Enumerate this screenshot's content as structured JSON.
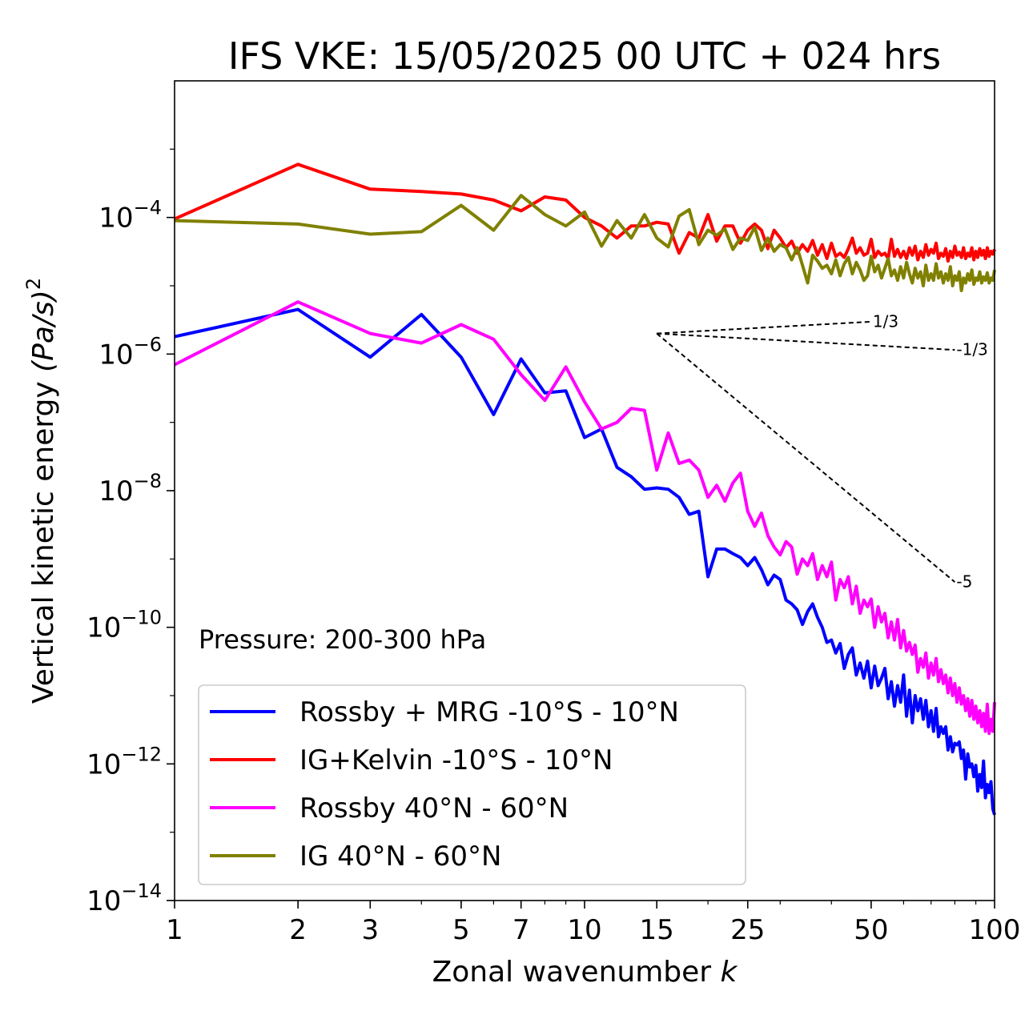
{
  "chart_data": {
    "type": "line",
    "title": "IFS VKE: 15/05/2025 00 UTC + 024 hrs",
    "xlabel": "Zonal wavenumber",
    "xlabel_var": "k",
    "ylabel": "Vertical kinetic energy",
    "ylabel_units": "(Pa/s)",
    "ylabel_exp": "2",
    "x_scale": "log",
    "y_scale": "log",
    "xlim": [
      1,
      100
    ],
    "ylim": [
      1e-14,
      0.01
    ],
    "x_ticks": [
      {
        "value": 1,
        "label": "1"
      },
      {
        "value": 2,
        "label": "2"
      },
      {
        "value": 3,
        "label": "3"
      },
      {
        "value": 5,
        "label": "5"
      },
      {
        "value": 7,
        "label": "7"
      },
      {
        "value": 10,
        "label": "10"
      },
      {
        "value": 15,
        "label": "15"
      },
      {
        "value": 25,
        "label": "25"
      },
      {
        "value": 50,
        "label": "50"
      },
      {
        "value": 100,
        "label": "100"
      }
    ],
    "y_ticks": [
      {
        "value": 0.0001,
        "base": "10",
        "exp": "−4"
      },
      {
        "value": 1e-06,
        "base": "10",
        "exp": "−6"
      },
      {
        "value": 1e-08,
        "base": "10",
        "exp": "−8"
      },
      {
        "value": 1e-10,
        "base": "10",
        "exp": "−10"
      },
      {
        "value": 1e-12,
        "base": "10",
        "exp": "−12"
      },
      {
        "value": 1e-14,
        "base": "10",
        "exp": "−14"
      }
    ],
    "annotation": "Pressure: 200-300 hPa",
    "legend_position": "lower-left",
    "grid": false,
    "reference_slopes": [
      {
        "label": "1/3",
        "x": [
          15,
          50
        ],
        "y": [
          2e-06,
          2.98e-06
        ]
      },
      {
        "label": "-1/3",
        "x": [
          15,
          80
        ],
        "y": [
          2e-06,
          1.15e-06
        ]
      },
      {
        "label": "-5",
        "x": [
          15,
          80
        ],
        "y": [
          2e-06,
          4.6e-10
        ]
      }
    ],
    "series": [
      {
        "name": "Rossby + MRG -10°S - 10°N",
        "color": "#0000ff",
        "x": [
          1,
          2,
          3,
          4,
          5,
          6,
          7,
          8,
          9,
          10,
          11,
          12,
          13,
          14,
          15,
          16,
          17,
          18,
          19,
          20,
          21,
          22,
          23,
          24,
          25,
          26,
          27,
          28,
          29,
          30,
          31,
          32,
          33,
          34,
          35,
          36,
          37,
          38,
          39,
          40,
          41,
          42,
          43,
          44,
          45,
          46,
          47,
          48,
          49,
          50,
          51,
          52,
          53,
          54,
          55,
          56,
          57,
          58,
          59,
          60,
          61,
          62,
          63,
          64,
          65,
          66,
          67,
          68,
          69,
          70,
          71,
          72,
          73,
          74,
          75,
          76,
          77,
          78,
          79,
          80,
          81,
          82,
          83,
          84,
          85,
          86,
          87,
          88,
          89,
          90,
          91,
          92,
          93,
          94,
          95,
          96,
          97,
          98,
          99,
          100
        ],
        "y": [
          1.8e-06,
          4.5e-06,
          9e-07,
          3.8e-06,
          9e-07,
          1.3e-07,
          8.5e-07,
          2.7e-07,
          2.9e-07,
          6e-08,
          8e-08,
          2.2e-08,
          1.6e-08,
          1.05e-08,
          1.1e-08,
          1.05e-08,
          8e-09,
          4.5e-09,
          5e-09,
          5.5e-10,
          1.4e-09,
          1.4e-09,
          1.2e-09,
          1.05e-09,
          8e-10,
          1.05e-09,
          7e-10,
          4.2e-10,
          5.8e-10,
          5e-10,
          2.5e-10,
          2.2e-10,
          1.8e-10,
          1.1e-10,
          1.7e-10,
          2.2e-10,
          1.4e-10,
          1e-10,
          6e-11,
          6.5e-11,
          4.2e-11,
          5.8e-11,
          2.5e-11,
          4e-11,
          5e-11,
          2e-11,
          3e-11,
          1.8e-11,
          3.2e-11,
          1.3e-11,
          2.7e-11,
          1.4e-11,
          1.8e-11,
          2.5e-11,
          9e-12,
          1.6e-11,
          7e-12,
          1.4e-11,
          8e-12,
          2e-11,
          5e-12,
          1.2e-11,
          4e-12,
          1e-11,
          6e-12,
          9e-12,
          4.5e-12,
          8.5e-12,
          3.5e-12,
          6e-12,
          3e-12,
          6.5e-12,
          2.5e-12,
          3.5e-12,
          2.8e-12,
          3.5e-12,
          1.6e-12,
          2.5e-12,
          1.5e-12,
          2e-12,
          1.9e-12,
          2.1e-12,
          1.2e-12,
          1.6e-12,
          6e-13,
          1.4e-12,
          9e-13,
          1e-12,
          6.5e-13,
          9.5e-13,
          4e-13,
          7e-13,
          4.5e-13,
          1.1e-12,
          3.2e-13,
          5e-13,
          3.8e-13,
          5.5e-13,
          2.2e-13,
          1.8e-13
        ]
      },
      {
        "name": "IG+Kelvin -10°S - 10°N",
        "color": "#ff0000",
        "x": [
          1,
          2,
          3,
          4,
          5,
          6,
          7,
          8,
          9,
          10,
          11,
          12,
          13,
          14,
          15,
          16,
          17,
          18,
          19,
          20,
          21,
          22,
          23,
          24,
          25,
          26,
          27,
          28,
          29,
          30,
          31,
          32,
          33,
          34,
          35,
          36,
          37,
          38,
          39,
          40,
          41,
          42,
          43,
          44,
          45,
          46,
          47,
          48,
          49,
          50,
          51,
          52,
          53,
          54,
          55,
          56,
          57,
          58,
          59,
          60,
          61,
          62,
          63,
          64,
          65,
          66,
          67,
          68,
          69,
          70,
          71,
          72,
          73,
          74,
          75,
          76,
          77,
          78,
          79,
          80,
          81,
          82,
          83,
          84,
          85,
          86,
          87,
          88,
          89,
          90,
          91,
          92,
          93,
          94,
          95,
          96,
          97,
          98,
          99,
          100
        ],
        "y": [
          9.5e-05,
          0.0006,
          0.00026,
          0.00024,
          0.00022,
          0.00018,
          0.000125,
          0.0002,
          0.00018,
          0.0001,
          7.5e-05,
          5e-05,
          7.5e-05,
          7.5e-05,
          8.5e-05,
          8e-05,
          3e-05,
          6e-05,
          5e-05,
          0.00011,
          4.5e-05,
          7.5e-05,
          7.5e-05,
          4.2e-05,
          6.5e-05,
          8e-05,
          6.5e-05,
          3.5e-05,
          6.5e-05,
          5e-05,
          3.6e-05,
          4.5e-05,
          3e-05,
          4e-05,
          3.2e-05,
          4.6e-05,
          2.8e-05,
          4e-05,
          2.5e-05,
          4.2e-05,
          2.7e-05,
          3e-05,
          2.6e-05,
          3.5e-05,
          5e-05,
          3e-05,
          3.6e-05,
          2.8e-05,
          3e-05,
          4.8e-05,
          2.6e-05,
          3.2e-05,
          2.8e-05,
          3e-05,
          2.5e-05,
          4.8e-05,
          2.7e-05,
          3.4e-05,
          2.6e-05,
          3.2e-05,
          2.5e-05,
          3.6e-05,
          2.8e-05,
          3.8e-05,
          2.4e-05,
          3.2e-05,
          2.6e-05,
          4e-05,
          2.8e-05,
          3.4e-05,
          3e-05,
          4.2e-05,
          2.5e-05,
          3e-05,
          2.7e-05,
          3.5e-05,
          2.3e-05,
          3.2e-05,
          2.6e-05,
          3.8e-05,
          2.8e-05,
          3.1e-05,
          2.6e-05,
          3.6e-05,
          2.5e-05,
          3e-05,
          2.7e-05,
          3.6e-05,
          2.4e-05,
          3.2e-05,
          2.6e-05,
          3.5e-05,
          2.8e-05,
          3.3e-05,
          2.5e-05,
          3.6e-05,
          2.7e-05,
          3.2e-05,
          2.9e-05,
          3.4e-05
        ]
      },
      {
        "name": "Rossby 40°N - 60°N",
        "color": "#ff00ff",
        "x": [
          1,
          2,
          3,
          4,
          5,
          6,
          7,
          8,
          9,
          10,
          11,
          12,
          13,
          14,
          15,
          16,
          17,
          18,
          19,
          20,
          21,
          22,
          23,
          24,
          25,
          26,
          27,
          28,
          29,
          30,
          31,
          32,
          33,
          34,
          35,
          36,
          37,
          38,
          39,
          40,
          41,
          42,
          43,
          44,
          45,
          46,
          47,
          48,
          49,
          50,
          51,
          52,
          53,
          54,
          55,
          56,
          57,
          58,
          59,
          60,
          61,
          62,
          63,
          64,
          65,
          66,
          67,
          68,
          69,
          70,
          71,
          72,
          73,
          74,
          75,
          76,
          77,
          78,
          79,
          80,
          81,
          82,
          83,
          84,
          85,
          86,
          87,
          88,
          89,
          90,
          91,
          92,
          93,
          94,
          95,
          96,
          97,
          98,
          99,
          100
        ],
        "y": [
          7e-07,
          5.8e-06,
          2e-06,
          1.45e-06,
          2.7e-06,
          1.65e-06,
          5e-07,
          2.1e-07,
          6.5e-07,
          2e-07,
          8e-08,
          1e-07,
          1.6e-07,
          1.5e-07,
          2e-08,
          7e-08,
          2.5e-08,
          2.8e-08,
          2e-08,
          8e-09,
          1.2e-08,
          7e-09,
          1.3e-08,
          1.8e-08,
          5e-09,
          3e-09,
          4.7e-09,
          2.2e-09,
          1.5e-09,
          1.15e-09,
          1.8e-09,
          1.5e-09,
          6e-10,
          1e-09,
          8e-10,
          1.2e-09,
          5e-10,
          8e-10,
          5.5e-10,
          9e-10,
          2.5e-10,
          5e-10,
          3.8e-10,
          5.5e-10,
          2.2e-10,
          4e-10,
          1.6e-10,
          2.5e-10,
          2e-10,
          2.6e-10,
          1e-10,
          2e-10,
          1.2e-10,
          1.6e-10,
          7e-11,
          1.2e-10,
          6.5e-11,
          1.3e-10,
          5e-11,
          9e-11,
          4.5e-11,
          6e-11,
          4e-11,
          5.5e-11,
          2.2e-11,
          3.5e-11,
          2.6e-11,
          4.2e-11,
          1.8e-11,
          3e-11,
          2e-11,
          3.5e-11,
          1.6e-11,
          2.4e-11,
          1.5e-11,
          2e-11,
          1.1e-11,
          1.8e-11,
          1e-11,
          1.5e-11,
          8e-12,
          1.3e-11,
          7.5e-12,
          1e-11,
          6e-12,
          9e-12,
          5e-12,
          8.5e-12,
          4.5e-12,
          7e-12,
          4e-12,
          6e-12,
          3.5e-12,
          5.5e-12,
          3e-12,
          7.5e-12,
          2.8e-12,
          4.5e-12,
          3e-12,
          8e-12
        ]
      },
      {
        "name": "IG 40°N - 60°N",
        "color": "#808000",
        "x": [
          1,
          2,
          3,
          4,
          5,
          6,
          7,
          8,
          9,
          10,
          11,
          12,
          13,
          14,
          15,
          16,
          17,
          18,
          19,
          20,
          21,
          22,
          23,
          24,
          25,
          26,
          27,
          28,
          29,
          30,
          31,
          32,
          33,
          34,
          35,
          36,
          37,
          38,
          39,
          40,
          41,
          42,
          43,
          44,
          45,
          46,
          47,
          48,
          49,
          50,
          51,
          52,
          53,
          54,
          55,
          56,
          57,
          58,
          59,
          60,
          61,
          62,
          63,
          64,
          65,
          66,
          67,
          68,
          69,
          70,
          71,
          72,
          73,
          74,
          75,
          76,
          77,
          78,
          79,
          80,
          81,
          82,
          83,
          84,
          85,
          86,
          87,
          88,
          89,
          90,
          91,
          92,
          93,
          94,
          95,
          96,
          97,
          98,
          99,
          100
        ],
        "y": [
          9e-05,
          8e-05,
          5.7e-05,
          6.2e-05,
          0.00015,
          6.5e-05,
          0.00021,
          0.00011,
          7.5e-05,
          0.00012,
          3.8e-05,
          9e-05,
          5e-05,
          0.00011,
          5e-05,
          3.7e-05,
          0.000105,
          0.00013,
          4e-05,
          6.5e-05,
          5.5e-05,
          6.8e-05,
          3.4e-05,
          5e-05,
          4.6e-05,
          7.2e-05,
          3.3e-05,
          5e-05,
          3.2e-05,
          4e-05,
          3.6e-05,
          2.4e-05,
          3.6e-05,
          2e-05,
          1.1e-05,
          2.8e-05,
          2.3e-05,
          1.8e-05,
          2e-05,
          1.5e-05,
          2.4e-05,
          1.4e-05,
          2.1e-05,
          2.6e-05,
          1.5e-05,
          2.2e-05,
          1.7e-05,
          1.2e-05,
          1.4e-05,
          2.7e-05,
          1.6e-05,
          2e-05,
          1.3e-05,
          1.8e-05,
          2.5e-05,
          1.4e-05,
          1.7e-05,
          1.2e-05,
          1.9e-05,
          1.3e-05,
          2.2e-05,
          1.5e-05,
          1.1e-05,
          1.8e-05,
          1.3e-05,
          1.6e-05,
          1e-05,
          2e-05,
          1.2e-05,
          1.5e-05,
          1.2e-05,
          2.1e-05,
          1.3e-05,
          1.6e-05,
          1.1e-05,
          1.5e-05,
          1.2e-05,
          1.9e-05,
          1e-05,
          1.4e-05,
          1.2e-05,
          1.6e-05,
          8.5e-06,
          1.3e-05,
          1.1e-05,
          1.5e-05,
          1.2e-05,
          1.7e-05,
          1.05e-05,
          1.3e-05,
          1.2e-05,
          1.6e-05,
          1.1e-05,
          1.35e-05,
          1.2e-05,
          1.55e-05,
          1.1e-05,
          1.3e-05,
          1.2e-05,
          1.7e-05
        ]
      }
    ]
  }
}
